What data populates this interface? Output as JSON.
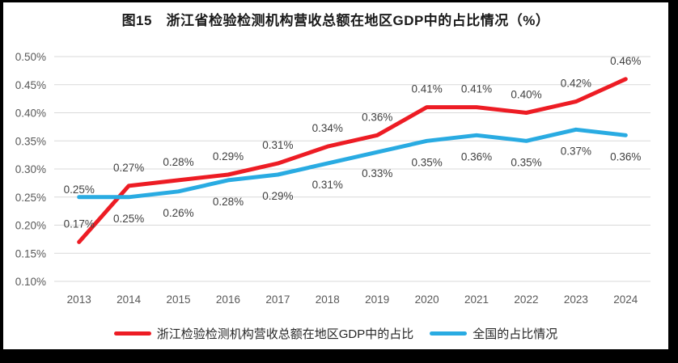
{
  "chart_data": {
    "type": "line",
    "title": "图15　浙江省检验检测机构营收总额在地区GDP中的占比情况（%）",
    "categories": [
      "2013",
      "2014",
      "2015",
      "2016",
      "2017",
      "2018",
      "2019",
      "2020",
      "2021",
      "2022",
      "2023",
      "2024"
    ],
    "series": [
      {
        "name": "浙江检验检测机构营收总额在地区GDP中的占比",
        "color": "#ED1C24",
        "values": [
          0.17,
          0.27,
          0.28,
          0.29,
          0.31,
          0.34,
          0.36,
          0.41,
          0.41,
          0.4,
          0.42,
          0.46
        ],
        "labels": [
          "0.17%",
          "0.27%",
          "0.28%",
          "0.29%",
          "0.31%",
          "0.34%",
          "0.36%",
          "0.41%",
          "0.41%",
          "0.40%",
          "0.42%",
          "0.46%"
        ],
        "label_position": "above"
      },
      {
        "name": "全国的占比情况",
        "color": "#29ABE2",
        "values": [
          0.25,
          0.25,
          0.26,
          0.28,
          0.29,
          0.31,
          0.33,
          0.35,
          0.36,
          0.35,
          0.37,
          0.36
        ],
        "labels": [
          "0.25%",
          "0.25%",
          "0.26%",
          "0.28%",
          "0.29%",
          "0.31%",
          "0.33%",
          "0.35%",
          "0.36%",
          "0.35%",
          "0.37%",
          "0.36%"
        ],
        "label_position": "below",
        "label_position_overrides": {
          "0": "above"
        }
      }
    ],
    "ylim": [
      0.1,
      0.5
    ],
    "ytick_step": 0.05,
    "ytick_labels": [
      "0.10%",
      "0.15%",
      "0.20%",
      "0.25%",
      "0.30%",
      "0.35%",
      "0.40%",
      "0.45%",
      "0.50%"
    ],
    "xlabel": "",
    "ylabel": "",
    "grid": true,
    "gridline_color": "#D9D9D9",
    "axis_text_color": "#595959",
    "data_label_color": "#404040",
    "legend_position": "bottom"
  },
  "legend": {
    "items": [
      {
        "label": "浙江检验检测机构营收总额在地区GDP中的占比",
        "color": "#ED1C24"
      },
      {
        "label": "全国的占比情况",
        "color": "#29ABE2"
      }
    ]
  }
}
